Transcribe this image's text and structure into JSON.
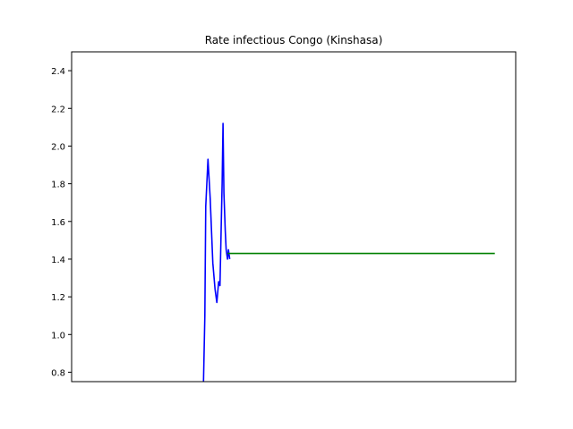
{
  "chart_data": {
    "type": "line",
    "title": "Rate infectious Congo (Kinshasa)",
    "xlabel": "",
    "ylabel": "",
    "xlim": [
      0,
      100
    ],
    "ylim": [
      0.75,
      2.5
    ],
    "yticks": [
      "0.8",
      "1.0",
      "1.2",
      "1.4",
      "1.6",
      "1.8",
      "2.0",
      "2.2",
      "2.4"
    ],
    "ytick_values": [
      0.8,
      1.0,
      1.2,
      1.4,
      1.6,
      1.8,
      2.0,
      2.2,
      2.4
    ],
    "grid": false,
    "series": [
      {
        "color": "#0000ff",
        "x": [
          29.7,
          30.0,
          30.2,
          30.4,
          30.7,
          31.2,
          31.8,
          32.3,
          32.7,
          33.1,
          33.4,
          33.7,
          33.9,
          34.1,
          34.3,
          34.6,
          34.8,
          35.1,
          35.3,
          35.6
        ],
        "y": [
          0.75,
          1.1,
          1.68,
          1.78,
          1.93,
          1.72,
          1.38,
          1.24,
          1.17,
          1.28,
          1.26,
          1.6,
          1.8,
          2.12,
          1.75,
          1.55,
          1.45,
          1.4,
          1.45,
          1.4
        ]
      },
      {
        "color": "#008000",
        "x": [
          35.1,
          95.3
        ],
        "y": [
          1.43,
          1.43
        ]
      }
    ]
  }
}
